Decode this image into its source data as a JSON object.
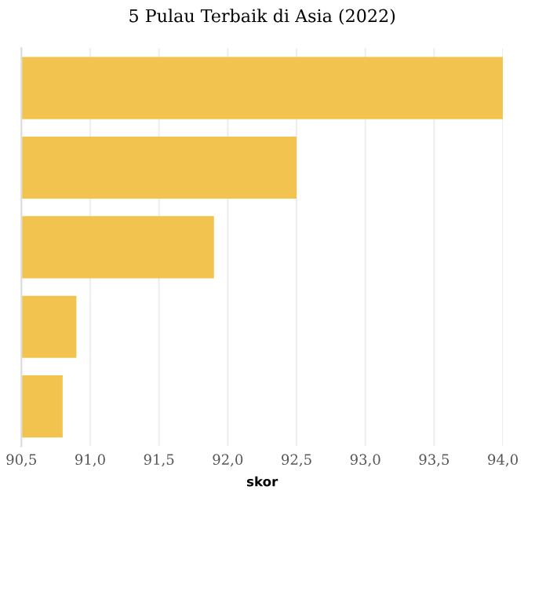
{
  "chart_data": {
    "type": "bar",
    "orientation": "horizontal",
    "title": "5 Pulau Terbaik di Asia (2022)",
    "xlabel": "skor",
    "categories": [
      null,
      null,
      null,
      null,
      null
    ],
    "values": [
      94.0,
      92.5,
      91.9,
      90.9,
      90.8
    ],
    "color": "#f2c44f",
    "xlim": [
      90.5,
      94.0
    ],
    "xticks": [
      {
        "value": 90.5,
        "label": "90,5"
      },
      {
        "value": 91.0,
        "label": "91,0"
      },
      {
        "value": 91.5,
        "label": "91,5"
      },
      {
        "value": 92.0,
        "label": "92,0"
      },
      {
        "value": 92.5,
        "label": "92,5"
      },
      {
        "value": 93.0,
        "label": "93,0"
      },
      {
        "value": 93.5,
        "label": "93,5"
      },
      {
        "value": 94.0,
        "label": "94,0"
      }
    ],
    "grid": "x"
  }
}
